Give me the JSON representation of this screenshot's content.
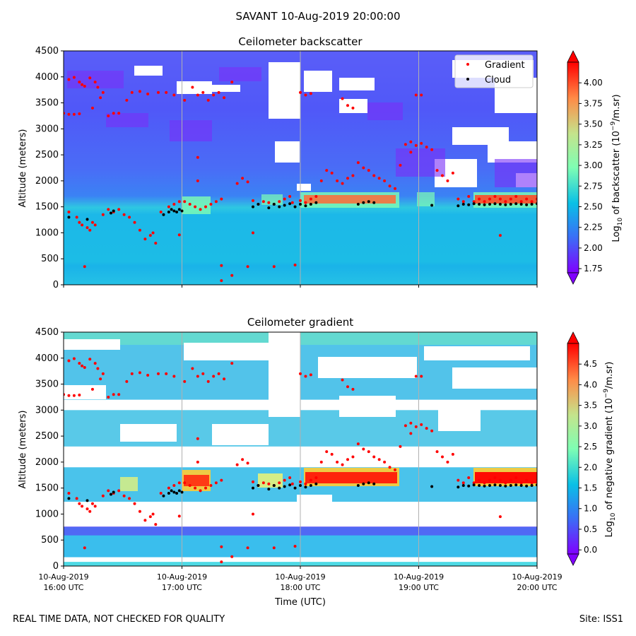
{
  "figure": {
    "suptitle": "SAVANT 10-Aug-2019 20:00:00",
    "footer_left": "REAL TIME DATA, NOT CHECKED FOR QUALITY",
    "footer_right": "Site: ISS1",
    "colors": {
      "gradient_marker": "#ff0000",
      "cloud_marker": "#000000",
      "missing": "#ffffff",
      "gridline": "#b0b0b0"
    }
  },
  "chart_data": [
    {
      "type": "heatmap",
      "title": "Ceilometer backscatter",
      "ylabel": "Altitude (meters)",
      "xlabel": "",
      "ylim": [
        0,
        4500
      ],
      "yticks": [
        "0",
        "500",
        "1000",
        "1500",
        "2000",
        "2500",
        "3000",
        "3500",
        "4000",
        "4500"
      ],
      "xlim": [
        "2019-08-10 16:00 UTC",
        "2019-08-10 20:00 UTC"
      ],
      "xtick_labels": [],
      "grid": "vertical lines at hourly ticks",
      "colormap": "rainbow",
      "colorbar": {
        "label_base": "Log",
        "label_sub": "10",
        "label_mid": " of backscatter (10",
        "label_sup": "−9",
        "label_end": "/m.sr)",
        "range": [
          1.7,
          4.25
        ],
        "ticks": [
          "1.75",
          "2.00",
          "2.25",
          "2.50",
          "2.75",
          "3.00",
          "3.25",
          "3.50",
          "3.75",
          "4.00"
        ],
        "extend": "both"
      },
      "legend": {
        "placement": "top-right",
        "entries": [
          {
            "label": "Gradient",
            "color": "#ff0000"
          },
          {
            "label": "Cloud",
            "color": "#000000"
          }
        ]
      },
      "field_description": {
        "near_surface_0_400m": 2.35,
        "boundary_layer_400_1400m": 2.2,
        "cloud_layer_peak": 4.1,
        "free_troposphere_above_2000m": 1.9
      },
      "series": [
        {
          "name": "Gradient",
          "points": [
            [
              0.0,
              3300
            ],
            [
              0.1,
              3280
            ],
            [
              0.2,
              3280
            ],
            [
              0.3,
              3290
            ],
            [
              0.1,
              3950
            ],
            [
              0.2,
              3990
            ],
            [
              0.3,
              3900
            ],
            [
              0.35,
              3850
            ],
            [
              0.4,
              3820
            ],
            [
              0.5,
              3980
            ],
            [
              0.6,
              3900
            ],
            [
              0.65,
              3800
            ],
            [
              0.7,
              3600
            ],
            [
              0.75,
              3700
            ],
            [
              0.55,
              3400
            ],
            [
              0.1,
              1400
            ],
            [
              0.25,
              1300
            ],
            [
              0.3,
              1200
            ],
            [
              0.35,
              1150
            ],
            [
              0.45,
              1100
            ],
            [
              0.5,
              1050
            ],
            [
              0.55,
              1200
            ],
            [
              0.6,
              1150
            ],
            [
              0.75,
              1350
            ],
            [
              0.85,
              1450
            ],
            [
              0.95,
              1400
            ],
            [
              1.05,
              1450
            ],
            [
              1.15,
              1350
            ],
            [
              1.25,
              1300
            ],
            [
              1.35,
              1200
            ],
            [
              1.45,
              1050
            ],
            [
              1.55,
              880
            ],
            [
              1.65,
              950
            ],
            [
              1.7,
              1000
            ],
            [
              1.75,
              800
            ],
            [
              0.85,
              3250
            ],
            [
              0.95,
              3300
            ],
            [
              1.05,
              3300
            ],
            [
              1.2,
              3550
            ],
            [
              1.3,
              3700
            ],
            [
              1.45,
              3720
            ],
            [
              1.6,
              3670
            ],
            [
              1.8,
              3700
            ],
            [
              1.85,
              1400
            ],
            [
              2.0,
              1500
            ],
            [
              2.1,
              1550
            ],
            [
              2.2,
              1600
            ],
            [
              2.3,
              1600
            ],
            [
              2.4,
              1550
            ],
            [
              2.5,
              1500
            ],
            [
              2.6,
              1450
            ],
            [
              2.7,
              1500
            ],
            [
              2.8,
              1550
            ],
            [
              2.9,
              1600
            ],
            [
              3.0,
              1650
            ],
            [
              1.95,
              3700
            ],
            [
              2.1,
              3650
            ],
            [
              2.3,
              3550
            ],
            [
              2.45,
              3800
            ],
            [
              2.55,
              3650
            ],
            [
              2.65,
              3700
            ],
            [
              2.75,
              3550
            ],
            [
              2.85,
              3650
            ],
            [
              2.95,
              3700
            ],
            [
              3.05,
              3600
            ],
            [
              3.2,
              3900
            ],
            [
              3.3,
              1950
            ],
            [
              3.4,
              2050
            ],
            [
              3.5,
              1980
            ],
            [
              3.6,
              1620
            ],
            [
              3.7,
              1550
            ],
            [
              3.8,
              1600
            ],
            [
              3.9,
              1580
            ],
            [
              4.0,
              1550
            ],
            [
              4.1,
              1600
            ],
            [
              4.2,
              1650
            ],
            [
              4.3,
              1700
            ],
            [
              4.35,
              1580
            ],
            [
              4.5,
              1620
            ],
            [
              4.6,
              1580
            ],
            [
              4.7,
              1650
            ],
            [
              4.8,
              1700
            ],
            [
              4.9,
              2000
            ],
            [
              5.0,
              2200
            ],
            [
              5.1,
              2150
            ],
            [
              5.2,
              2000
            ],
            [
              5.3,
              1950
            ],
            [
              5.4,
              2050
            ],
            [
              5.5,
              2100
            ],
            [
              5.6,
              2350
            ],
            [
              5.7,
              2250
            ],
            [
              5.8,
              2200
            ],
            [
              5.9,
              2100
            ],
            [
              6.0,
              2050
            ],
            [
              6.1,
              2000
            ],
            [
              6.2,
              1900
            ],
            [
              6.3,
              1850
            ],
            [
              6.4,
              2300
            ],
            [
              6.5,
              2700
            ],
            [
              6.6,
              2750
            ],
            [
              6.7,
              2680
            ],
            [
              6.8,
              2720
            ],
            [
              6.9,
              2650
            ],
            [
              7.0,
              2600
            ],
            [
              7.1,
              2200
            ],
            [
              7.2,
              2100
            ],
            [
              7.3,
              2000
            ],
            [
              7.4,
              2150
            ],
            [
              7.5,
              1650
            ],
            [
              7.6,
              1600
            ],
            [
              7.7,
              1700
            ],
            [
              7.8,
              1600
            ],
            [
              7.9,
              1650
            ],
            [
              8.0,
              1600
            ],
            [
              8.1,
              1650
            ],
            [
              8.2,
              1700
            ],
            [
              8.3,
              1650
            ],
            [
              8.4,
              1600
            ],
            [
              8.5,
              1650
            ],
            [
              8.6,
              1700
            ],
            [
              8.7,
              1600
            ],
            [
              8.8,
              1650
            ],
            [
              8.9,
              1600
            ],
            [
              9.0,
              1650
            ],
            [
              6.6,
              2550
            ],
            [
              6.7,
              3650
            ],
            [
              6.8,
              3650
            ],
            [
              5.3,
              3580
            ],
            [
              5.4,
              3450
            ],
            [
              5.5,
              3400
            ],
            [
              4.5,
              3700
            ],
            [
              4.6,
              3650
            ],
            [
              4.7,
              3680
            ],
            [
              0.4,
              350
            ],
            [
              2.2,
              960
            ],
            [
              3.0,
              370
            ],
            [
              3.0,
              80
            ],
            [
              3.2,
              180
            ],
            [
              3.6,
              1000
            ],
            [
              3.5,
              350
            ],
            [
              4.0,
              350
            ],
            [
              4.4,
              380
            ],
            [
              8.3,
              950
            ],
            [
              2.55,
              2450
            ],
            [
              2.55,
              2000
            ]
          ]
        },
        {
          "name": "Cloud",
          "points": [
            [
              0.1,
              1300
            ],
            [
              0.45,
              1260
            ],
            [
              0.9,
              1380
            ],
            [
              0.95,
              1420
            ],
            [
              1.9,
              1350
            ],
            [
              2.0,
              1400
            ],
            [
              2.05,
              1450
            ],
            [
              2.1,
              1420
            ],
            [
              2.15,
              1400
            ],
            [
              2.2,
              1450
            ],
            [
              2.25,
              1420
            ],
            [
              3.6,
              1500
            ],
            [
              3.7,
              1550
            ],
            [
              3.9,
              1480
            ],
            [
              4.0,
              1550
            ],
            [
              4.1,
              1500
            ],
            [
              4.2,
              1530
            ],
            [
              4.3,
              1560
            ],
            [
              4.4,
              1500
            ],
            [
              4.5,
              1550
            ],
            [
              4.6,
              1520
            ],
            [
              4.7,
              1550
            ],
            [
              4.8,
              1580
            ],
            [
              5.6,
              1550
            ],
            [
              5.7,
              1580
            ],
            [
              5.8,
              1600
            ],
            [
              5.9,
              1580
            ],
            [
              7.0,
              1530
            ],
            [
              7.5,
              1520
            ],
            [
              7.6,
              1550
            ],
            [
              7.7,
              1540
            ],
            [
              7.8,
              1560
            ],
            [
              7.9,
              1550
            ],
            [
              8.0,
              1540
            ],
            [
              8.1,
              1550
            ],
            [
              8.2,
              1560
            ],
            [
              8.3,
              1550
            ],
            [
              8.4,
              1540
            ],
            [
              8.5,
              1550
            ],
            [
              8.6,
              1560
            ],
            [
              8.7,
              1550
            ],
            [
              8.8,
              1540
            ],
            [
              8.9,
              1550
            ],
            [
              9.0,
              1560
            ]
          ]
        }
      ]
    },
    {
      "type": "heatmap",
      "title": "Ceilometer gradient",
      "ylabel": "Altitude (meters)",
      "xlabel": "Time (UTC)",
      "ylim": [
        0,
        4500
      ],
      "yticks": [
        "0",
        "500",
        "1000",
        "1500",
        "2000",
        "2500",
        "3000",
        "3500",
        "4000",
        "4500"
      ],
      "xlim": [
        "2019-08-10 16:00 UTC",
        "2019-08-10 20:00 UTC"
      ],
      "xtick_labels": [
        [
          "10-Aug-2019",
          "16:00 UTC"
        ],
        [
          "10-Aug-2019",
          "17:00 UTC"
        ],
        [
          "10-Aug-2019",
          "18:00 UTC"
        ],
        [
          "10-Aug-2019",
          "19:00 UTC"
        ],
        [
          "10-Aug-2019",
          "20:00 UTC"
        ]
      ],
      "grid": "vertical lines at hourly ticks",
      "colormap": "rainbow",
      "colorbar": {
        "label_base": "Log",
        "label_sub": "10",
        "label_mid": " of negative gradient (10",
        "label_sup": "−9",
        "label_end": "/m.sr)",
        "range": [
          -0.1,
          5.0
        ],
        "ticks": [
          "0.0",
          "0.5",
          "1.0",
          "1.5",
          "2.0",
          "2.5",
          "3.0",
          "3.5",
          "4.0",
          "4.5"
        ],
        "extend": "both"
      },
      "field_description": {
        "layers_m": [
          [
            0,
            80
          ],
          [
            170,
            750
          ],
          [
            1100,
            1900
          ],
          [
            2300,
            3000
          ],
          [
            3200,
            4500
          ]
        ],
        "typical_value": 1.4,
        "cloud_layer_peak": 4.7
      }
    }
  ]
}
